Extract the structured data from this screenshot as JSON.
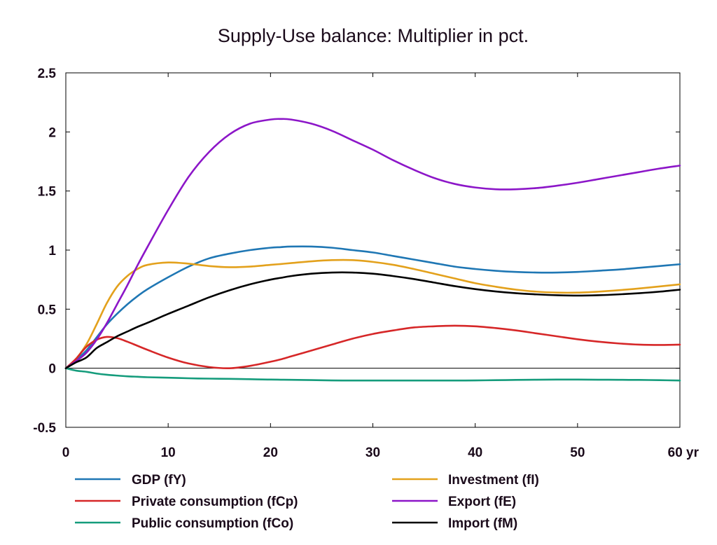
{
  "chart_data": {
    "type": "line",
    "title": "Supply-Use balance: Multiplier in pct.",
    "xlabel": "",
    "ylabel": "",
    "xlim": [
      0,
      60
    ],
    "ylim": [
      -0.5,
      2.5
    ],
    "x_ticks": [
      0,
      10,
      20,
      30,
      40,
      50,
      60
    ],
    "x_tick_labels": [
      "0",
      "10",
      "20",
      "30",
      "40",
      "50",
      "60 yr"
    ],
    "y_ticks": [
      -0.5,
      0,
      0.5,
      1,
      1.5,
      2,
      2.5
    ],
    "y_tick_labels": [
      "-0.5",
      "0",
      "0.5",
      "1",
      "1.5",
      "2",
      "2.5"
    ],
    "grid": false,
    "zero_line": true,
    "legend_position": "bottom",
    "x": [
      0,
      1,
      2,
      3,
      4,
      5,
      6,
      7,
      8,
      10,
      12,
      14,
      16,
      18,
      20,
      21,
      22,
      24,
      26,
      28,
      30,
      32,
      34,
      36,
      38,
      40,
      42,
      44,
      46,
      48,
      50,
      52,
      54,
      56,
      58,
      60
    ],
    "series": [
      {
        "name": "GDP (fY)",
        "color": "#1f77b4",
        "values": [
          0,
          0.07,
          0.15,
          0.26,
          0.37,
          0.46,
          0.54,
          0.61,
          0.67,
          0.77,
          0.86,
          0.93,
          0.97,
          1.0,
          1.02,
          1.025,
          1.03,
          1.03,
          1.02,
          1.0,
          0.98,
          0.95,
          0.92,
          0.89,
          0.86,
          0.84,
          0.825,
          0.815,
          0.81,
          0.81,
          0.815,
          0.825,
          0.835,
          0.85,
          0.865,
          0.88
        ]
      },
      {
        "name": "Investment (fI)",
        "color": "#e3a11c",
        "values": [
          0,
          0.08,
          0.2,
          0.37,
          0.55,
          0.69,
          0.78,
          0.84,
          0.875,
          0.895,
          0.885,
          0.865,
          0.855,
          0.86,
          0.875,
          0.882,
          0.89,
          0.905,
          0.915,
          0.915,
          0.9,
          0.875,
          0.84,
          0.8,
          0.76,
          0.72,
          0.69,
          0.665,
          0.648,
          0.64,
          0.64,
          0.648,
          0.66,
          0.675,
          0.692,
          0.71
        ]
      },
      {
        "name": "Private consumption (fCp)",
        "color": "#d62728",
        "values": [
          0,
          0.08,
          0.18,
          0.24,
          0.265,
          0.255,
          0.225,
          0.19,
          0.155,
          0.09,
          0.04,
          0.01,
          0.0,
          0.02,
          0.055,
          0.075,
          0.1,
          0.15,
          0.2,
          0.25,
          0.29,
          0.32,
          0.345,
          0.355,
          0.36,
          0.355,
          0.34,
          0.32,
          0.295,
          0.27,
          0.245,
          0.225,
          0.21,
          0.2,
          0.197,
          0.2
        ]
      },
      {
        "name": "Export (fE)",
        "color": "#8c16c8",
        "values": [
          0,
          0.06,
          0.13,
          0.24,
          0.38,
          0.54,
          0.7,
          0.87,
          1.03,
          1.34,
          1.62,
          1.83,
          1.98,
          2.07,
          2.105,
          2.11,
          2.105,
          2.07,
          2.01,
          1.93,
          1.85,
          1.76,
          1.68,
          1.61,
          1.56,
          1.53,
          1.515,
          1.515,
          1.525,
          1.545,
          1.57,
          1.6,
          1.63,
          1.66,
          1.69,
          1.715
        ]
      },
      {
        "name": "Public consumption (fCo)",
        "color": "#159c7c",
        "values": [
          0,
          -0.02,
          -0.03,
          -0.045,
          -0.055,
          -0.062,
          -0.068,
          -0.072,
          -0.076,
          -0.08,
          -0.085,
          -0.088,
          -0.09,
          -0.093,
          -0.096,
          -0.097,
          -0.098,
          -0.1,
          -0.103,
          -0.104,
          -0.104,
          -0.104,
          -0.104,
          -0.104,
          -0.104,
          -0.103,
          -0.101,
          -0.099,
          -0.097,
          -0.096,
          -0.096,
          -0.097,
          -0.098,
          -0.099,
          -0.101,
          -0.104
        ]
      },
      {
        "name": "Import (fM)",
        "color": "#000000",
        "values": [
          0,
          0.05,
          0.09,
          0.17,
          0.22,
          0.27,
          0.31,
          0.35,
          0.385,
          0.46,
          0.53,
          0.6,
          0.66,
          0.71,
          0.75,
          0.765,
          0.78,
          0.8,
          0.81,
          0.81,
          0.8,
          0.78,
          0.755,
          0.725,
          0.695,
          0.67,
          0.65,
          0.635,
          0.625,
          0.618,
          0.615,
          0.618,
          0.625,
          0.635,
          0.648,
          0.665
        ]
      }
    ],
    "legend_order": [
      0,
      2,
      4,
      1,
      3,
      5
    ]
  }
}
